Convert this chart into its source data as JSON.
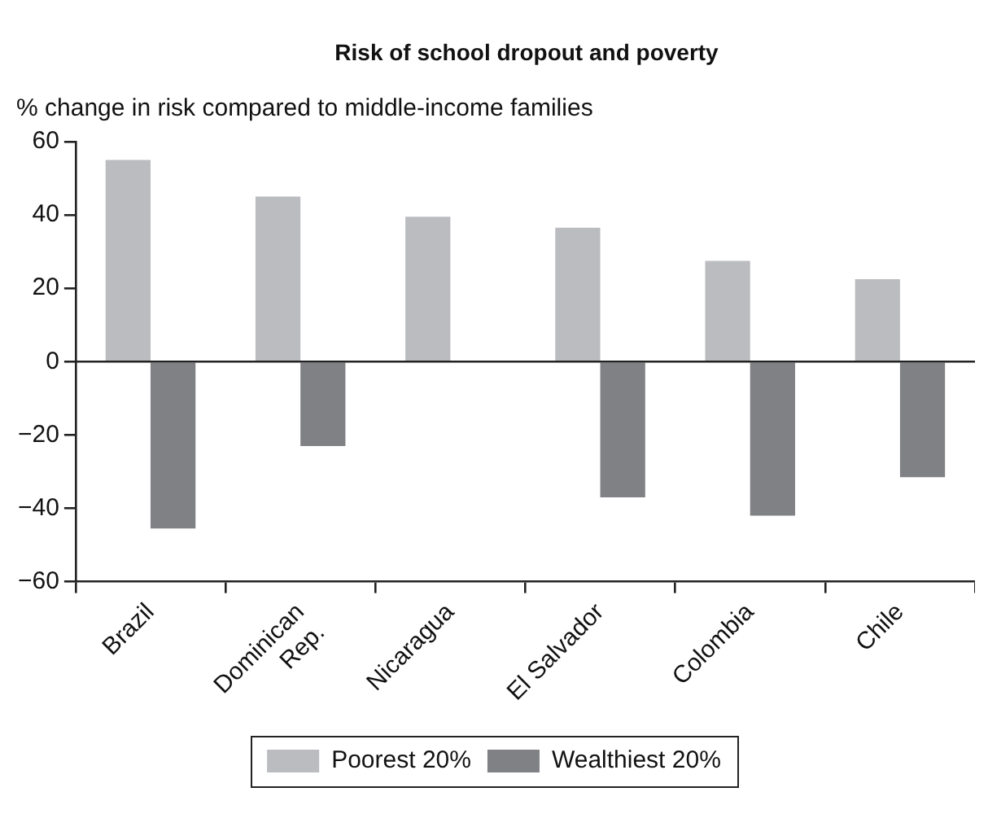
{
  "chart_data": {
    "type": "bar",
    "title": "Risk of school dropout and poverty",
    "ylabel": "% change in risk compared to middle-income families",
    "categories": [
      "Brazil",
      "Dominican\nRep.",
      "Nicaragua",
      "El Salvador",
      "Colombia",
      "Chile"
    ],
    "series": [
      {
        "name": "Poorest 20%",
        "color": "#bbbcc0",
        "values": [
          55,
          45,
          39.5,
          36.5,
          27.5,
          22.5
        ]
      },
      {
        "name": "Wealthiest 20%",
        "color": "#808185",
        "values": [
          -45.5,
          -23,
          null,
          -37,
          -42,
          -31.5
        ]
      }
    ],
    "ylim": [
      -60,
      60
    ],
    "yticks": [
      -60,
      -40,
      -20,
      0,
      20,
      40,
      60
    ],
    "ref_lines": [
      {
        "axis": "y",
        "value": 0
      }
    ],
    "grid": false,
    "legend": "bottom"
  }
}
